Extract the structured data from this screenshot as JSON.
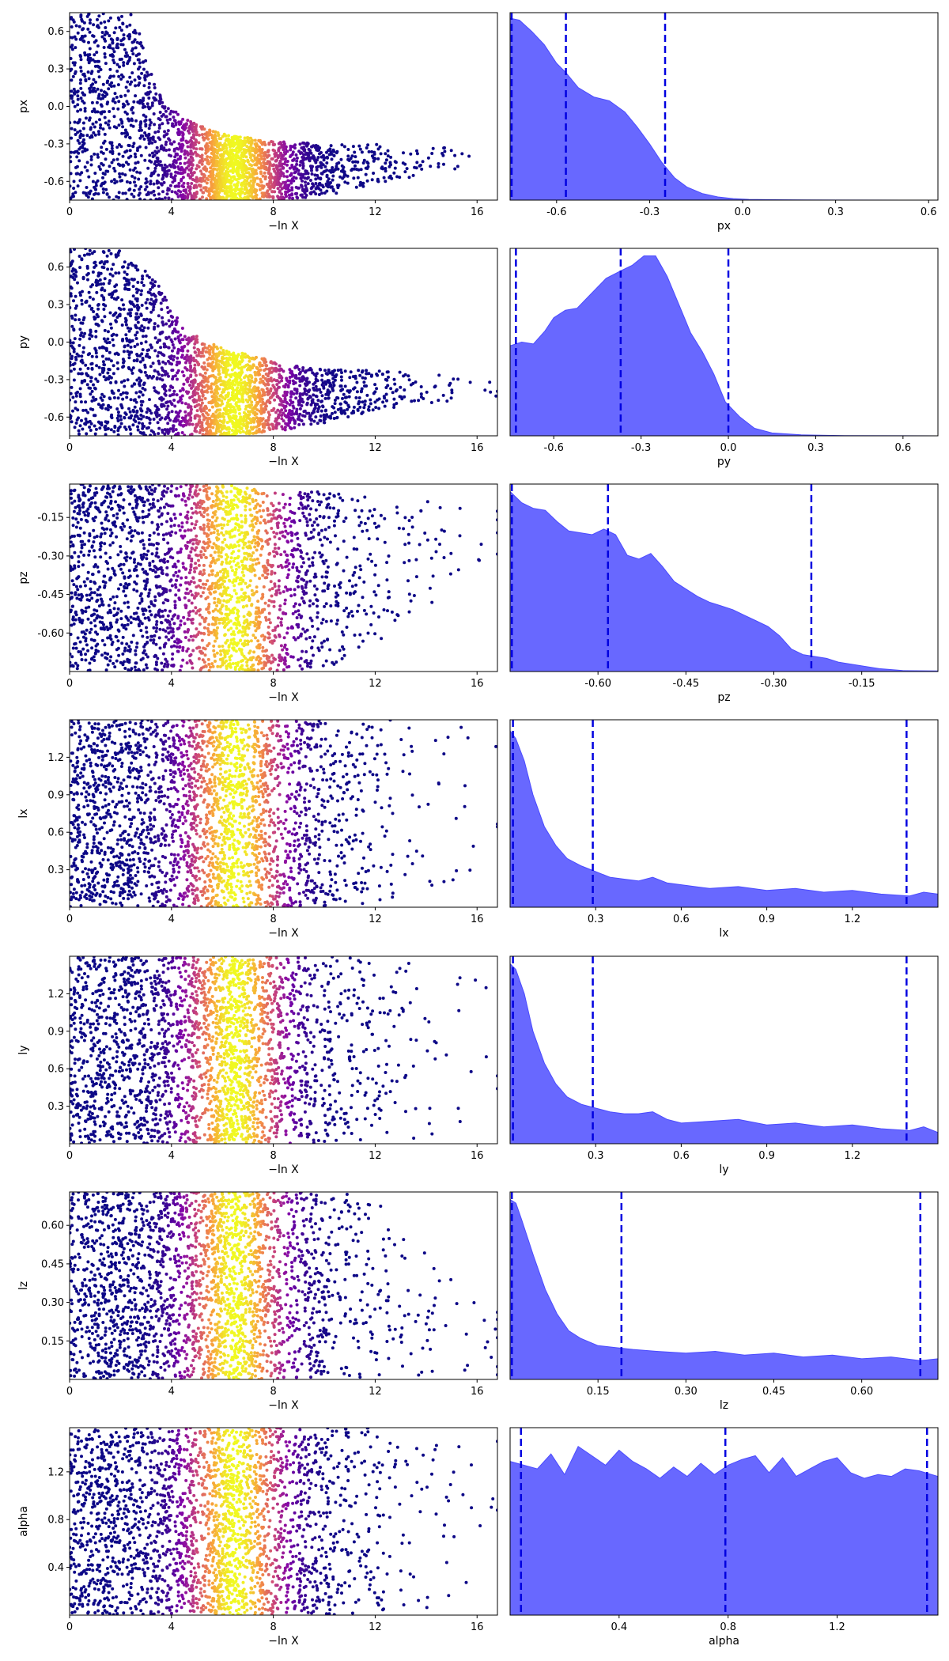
{
  "chart_data": [
    {
      "type": "scatter",
      "xlabel": "−ln X",
      "ylabel": "px",
      "xlim": [
        0,
        16.8
      ],
      "ylim": [
        -0.75,
        0.75
      ],
      "xticks": [
        "0",
        "4",
        "8",
        "12",
        "16"
      ],
      "yticks": [
        "-0.6",
        "-0.3",
        "0.0",
        "0.3",
        "0.6"
      ],
      "colormap": "plasma",
      "envelope": {
        "x": [
          0,
          2.5,
          3.5,
          4.5,
          6,
          8,
          10,
          12,
          14,
          16.4
        ],
        "upper": [
          0.75,
          0.75,
          0.1,
          -0.1,
          -0.22,
          -0.28,
          -0.3,
          -0.3,
          -0.32,
          -0.35
        ],
        "lower": [
          -0.75,
          -0.75,
          -0.75,
          -0.75,
          -0.75,
          -0.75,
          -0.72,
          -0.62,
          -0.55,
          -0.45
        ]
      }
    },
    {
      "type": "area",
      "xlabel": "px",
      "xlim": [
        -0.75,
        0.63
      ],
      "xticks": [
        "-0.6",
        "-0.3",
        "0.0",
        "0.3",
        "0.6"
      ],
      "fill_color": "#6060ff",
      "quantile_lines": [
        -0.745,
        -0.57,
        -0.25
      ],
      "x": [
        -0.75,
        -0.72,
        -0.68,
        -0.64,
        -0.6,
        -0.57,
        -0.53,
        -0.48,
        -0.43,
        -0.38,
        -0.34,
        -0.3,
        -0.26,
        -0.22,
        -0.18,
        -0.13,
        -0.08,
        -0.03,
        0.02,
        0.1,
        0.3,
        0.63
      ],
      "density": [
        0.97,
        0.96,
        0.9,
        0.83,
        0.73,
        0.68,
        0.6,
        0.55,
        0.53,
        0.47,
        0.39,
        0.3,
        0.2,
        0.12,
        0.07,
        0.035,
        0.017,
        0.008,
        0.004,
        0.002,
        0.0005,
        0
      ]
    },
    {
      "type": "scatter",
      "xlabel": "−ln X",
      "ylabel": "py",
      "xlim": [
        0,
        16.8
      ],
      "ylim": [
        -0.75,
        0.75
      ],
      "xticks": [
        "0",
        "4",
        "8",
        "12",
        "16"
      ],
      "yticks": [
        "-0.6",
        "-0.3",
        "0.0",
        "0.3",
        "0.6"
      ],
      "colormap": "plasma",
      "envelope": {
        "x": [
          0,
          2.5,
          3.5,
          4.5,
          6,
          8,
          10,
          12,
          14,
          16.8
        ],
        "upper": [
          0.75,
          0.75,
          0.45,
          0.1,
          -0.05,
          -0.15,
          -0.22,
          -0.22,
          -0.25,
          -0.3
        ],
        "lower": [
          -0.75,
          -0.75,
          -0.75,
          -0.75,
          -0.75,
          -0.72,
          -0.65,
          -0.55,
          -0.5,
          -0.45
        ]
      }
    },
    {
      "type": "area",
      "xlabel": "py",
      "xlim": [
        -0.75,
        0.72
      ],
      "xticks": [
        "-0.6",
        "-0.3",
        "0.0",
        "0.3",
        "0.6"
      ],
      "fill_color": "#6060ff",
      "quantile_lines": [
        -0.73,
        -0.37,
        0.0
      ],
      "x": [
        -0.75,
        -0.71,
        -0.67,
        -0.63,
        -0.6,
        -0.56,
        -0.52,
        -0.47,
        -0.42,
        -0.37,
        -0.33,
        -0.29,
        -0.25,
        -0.21,
        -0.17,
        -0.13,
        -0.09,
        -0.05,
        -0.01,
        0.04,
        0.09,
        0.15,
        0.25,
        0.4,
        0.72
      ],
      "density": [
        0.48,
        0.5,
        0.49,
        0.56,
        0.63,
        0.67,
        0.68,
        0.76,
        0.84,
        0.88,
        0.91,
        0.96,
        0.96,
        0.85,
        0.7,
        0.55,
        0.45,
        0.33,
        0.18,
        0.1,
        0.04,
        0.015,
        0.005,
        0.001,
        0
      ]
    },
    {
      "type": "scatter",
      "xlabel": "−ln X",
      "ylabel": "pz",
      "xlim": [
        0,
        16.8
      ],
      "ylim": [
        -0.75,
        -0.02
      ],
      "xticks": [
        "0",
        "4",
        "8",
        "12",
        "16"
      ],
      "yticks": [
        "-0.15",
        "-0.30",
        "-0.45",
        "-0.60"
      ],
      "colormap": "plasma",
      "envelope": {
        "x": [
          0,
          4,
          6,
          8,
          10,
          12,
          14,
          16.8
        ],
        "upper": [
          -0.02,
          -0.02,
          -0.02,
          -0.05,
          -0.05,
          -0.05,
          -0.08,
          -0.1
        ],
        "lower": [
          -0.75,
          -0.75,
          -0.75,
          -0.75,
          -0.74,
          -0.66,
          -0.5,
          -0.3
        ]
      }
    },
    {
      "type": "area",
      "xlabel": "pz",
      "xlim": [
        -0.75,
        -0.02
      ],
      "xticks": [
        "-0.60",
        "-0.45",
        "-0.30",
        "-0.15"
      ],
      "fill_color": "#6060ff",
      "quantile_lines": [
        -0.747,
        -0.583,
        -0.236
      ],
      "x": [
        -0.75,
        -0.73,
        -0.71,
        -0.69,
        -0.67,
        -0.65,
        -0.63,
        -0.61,
        -0.59,
        -0.57,
        -0.55,
        -0.53,
        -0.51,
        -0.49,
        -0.47,
        -0.45,
        -0.43,
        -0.41,
        -0.39,
        -0.37,
        -0.35,
        -0.33,
        -0.31,
        -0.29,
        -0.27,
        -0.25,
        -0.23,
        -0.21,
        -0.19,
        -0.17,
        -0.15,
        -0.12,
        -0.08,
        -0.02
      ],
      "density": [
        0.96,
        0.9,
        0.87,
        0.86,
        0.8,
        0.75,
        0.74,
        0.73,
        0.76,
        0.73,
        0.62,
        0.6,
        0.63,
        0.56,
        0.48,
        0.44,
        0.4,
        0.37,
        0.35,
        0.33,
        0.3,
        0.27,
        0.24,
        0.19,
        0.12,
        0.09,
        0.08,
        0.07,
        0.05,
        0.04,
        0.03,
        0.015,
        0.005,
        0.003
      ]
    },
    {
      "type": "scatter",
      "xlabel": "−ln X",
      "ylabel": "lx",
      "xlim": [
        0,
        16.8
      ],
      "ylim": [
        0,
        1.5
      ],
      "xticks": [
        "0",
        "4",
        "8",
        "12",
        "16"
      ],
      "yticks": [
        "0.3",
        "0.6",
        "0.9",
        "1.2"
      ],
      "colormap": "plasma",
      "envelope": {
        "x": [
          0,
          4,
          6,
          8,
          10,
          12,
          14,
          16.8
        ],
        "upper": [
          1.5,
          1.5,
          1.5,
          1.5,
          1.5,
          1.5,
          1.5,
          1.45
        ],
        "lower": [
          0,
          0,
          0,
          0,
          0.01,
          0.02,
          0.15,
          0.3
        ]
      }
    },
    {
      "type": "area",
      "xlabel": "lx",
      "xlim": [
        0,
        1.5
      ],
      "xticks": [
        "0.3",
        "0.6",
        "0.9",
        "1.2"
      ],
      "fill_color": "#6060ff",
      "quantile_lines": [
        0.01,
        0.29,
        1.39
      ],
      "x": [
        0,
        0.02,
        0.05,
        0.08,
        0.12,
        0.16,
        0.2,
        0.25,
        0.3,
        0.35,
        0.4,
        0.45,
        0.5,
        0.55,
        0.6,
        0.7,
        0.8,
        0.9,
        1.0,
        1.1,
        1.2,
        1.3,
        1.4,
        1.45,
        1.5
      ],
      "density": [
        0.94,
        0.9,
        0.78,
        0.6,
        0.43,
        0.33,
        0.26,
        0.22,
        0.19,
        0.16,
        0.15,
        0.14,
        0.16,
        0.13,
        0.12,
        0.1,
        0.11,
        0.09,
        0.1,
        0.08,
        0.09,
        0.07,
        0.06,
        0.08,
        0.07
      ]
    },
    {
      "type": "scatter",
      "xlabel": "−ln X",
      "ylabel": "ly",
      "xlim": [
        0,
        16.8
      ],
      "ylim": [
        0,
        1.5
      ],
      "xticks": [
        "0",
        "4",
        "8",
        "12",
        "16"
      ],
      "yticks": [
        "0.3",
        "0.6",
        "0.9",
        "1.2"
      ],
      "colormap": "plasma",
      "envelope": {
        "x": [
          0,
          4,
          6,
          8,
          10,
          12,
          14,
          16.8
        ],
        "upper": [
          1.5,
          1.5,
          1.5,
          1.5,
          1.5,
          1.5,
          1.45,
          1.4
        ],
        "lower": [
          0,
          0,
          0,
          0,
          0.01,
          0.02,
          0.05,
          0.3
        ]
      }
    },
    {
      "type": "area",
      "xlabel": "ly",
      "xlim": [
        0,
        1.5
      ],
      "xticks": [
        "0.3",
        "0.6",
        "0.9",
        "1.2"
      ],
      "fill_color": "#6060ff",
      "quantile_lines": [
        0.01,
        0.29,
        1.39
      ],
      "x": [
        0,
        0.02,
        0.05,
        0.08,
        0.12,
        0.16,
        0.2,
        0.25,
        0.3,
        0.35,
        0.4,
        0.45,
        0.5,
        0.55,
        0.6,
        0.7,
        0.8,
        0.9,
        1.0,
        1.1,
        1.2,
        1.3,
        1.4,
        1.45,
        1.5
      ],
      "density": [
        0.96,
        0.93,
        0.8,
        0.6,
        0.43,
        0.32,
        0.25,
        0.21,
        0.19,
        0.17,
        0.16,
        0.16,
        0.17,
        0.13,
        0.11,
        0.12,
        0.13,
        0.1,
        0.11,
        0.09,
        0.1,
        0.08,
        0.07,
        0.09,
        0.06
      ]
    },
    {
      "type": "scatter",
      "xlabel": "−ln X",
      "ylabel": "lz",
      "xlim": [
        0,
        16.8
      ],
      "ylim": [
        0,
        0.73
      ],
      "xticks": [
        "0",
        "4",
        "8",
        "12",
        "16"
      ],
      "yticks": [
        "0.15",
        "0.30",
        "0.45",
        "0.60"
      ],
      "colormap": "plasma",
      "envelope": {
        "x": [
          0,
          4,
          6,
          8,
          10,
          12,
          14,
          16.8
        ],
        "upper": [
          0.73,
          0.73,
          0.73,
          0.73,
          0.73,
          0.72,
          0.5,
          0.3
        ],
        "lower": [
          0,
          0,
          0,
          0,
          0,
          0.005,
          0.01,
          0.01
        ]
      }
    },
    {
      "type": "area",
      "xlabel": "lz",
      "xlim": [
        0,
        0.73
      ],
      "xticks": [
        "0.15",
        "0.30",
        "0.45",
        "0.60"
      ],
      "fill_color": "#6060ff",
      "quantile_lines": [
        0.003,
        0.19,
        0.7
      ],
      "x": [
        0,
        0.01,
        0.02,
        0.04,
        0.06,
        0.08,
        0.1,
        0.12,
        0.15,
        0.18,
        0.21,
        0.25,
        0.3,
        0.35,
        0.4,
        0.45,
        0.5,
        0.55,
        0.6,
        0.65,
        0.7,
        0.73
      ],
      "density": [
        0.96,
        0.94,
        0.85,
        0.66,
        0.48,
        0.35,
        0.26,
        0.22,
        0.18,
        0.17,
        0.16,
        0.15,
        0.14,
        0.15,
        0.13,
        0.14,
        0.12,
        0.13,
        0.11,
        0.12,
        0.1,
        0.11
      ]
    },
    {
      "type": "scatter",
      "xlabel": "−ln X",
      "ylabel": "alpha",
      "xlim": [
        0,
        16.8
      ],
      "ylim": [
        0,
        1.57
      ],
      "xticks": [
        "0",
        "4",
        "8",
        "12",
        "16"
      ],
      "yticks": [
        "0.4",
        "0.8",
        "1.2"
      ],
      "colormap": "plasma",
      "envelope": {
        "x": [
          0,
          4,
          6,
          8,
          10,
          12,
          14,
          16.8
        ],
        "upper": [
          1.57,
          1.57,
          1.57,
          1.57,
          1.57,
          1.57,
          1.57,
          1.5
        ],
        "lower": [
          0,
          0,
          0,
          0,
          0,
          0.01,
          0.05,
          0.4
        ]
      }
    },
    {
      "type": "area",
      "xlabel": "alpha",
      "xlim": [
        0,
        1.57
      ],
      "xticks": [
        "0.4",
        "0.8",
        "1.2"
      ],
      "fill_color": "#6060ff",
      "quantile_lines": [
        0.04,
        0.79,
        1.53
      ],
      "x": [
        0,
        0.05,
        0.1,
        0.15,
        0.2,
        0.25,
        0.3,
        0.35,
        0.4,
        0.45,
        0.5,
        0.55,
        0.6,
        0.65,
        0.7,
        0.75,
        0.8,
        0.85,
        0.9,
        0.95,
        1.0,
        1.05,
        1.1,
        1.15,
        1.2,
        1.25,
        1.3,
        1.35,
        1.4,
        1.45,
        1.5,
        1.57
      ],
      "density": [
        0.82,
        0.8,
        0.78,
        0.86,
        0.75,
        0.9,
        0.85,
        0.8,
        0.88,
        0.82,
        0.78,
        0.73,
        0.79,
        0.74,
        0.81,
        0.75,
        0.8,
        0.83,
        0.85,
        0.76,
        0.84,
        0.74,
        0.78,
        0.82,
        0.84,
        0.76,
        0.73,
        0.75,
        0.74,
        0.78,
        0.77,
        0.74
      ]
    }
  ]
}
